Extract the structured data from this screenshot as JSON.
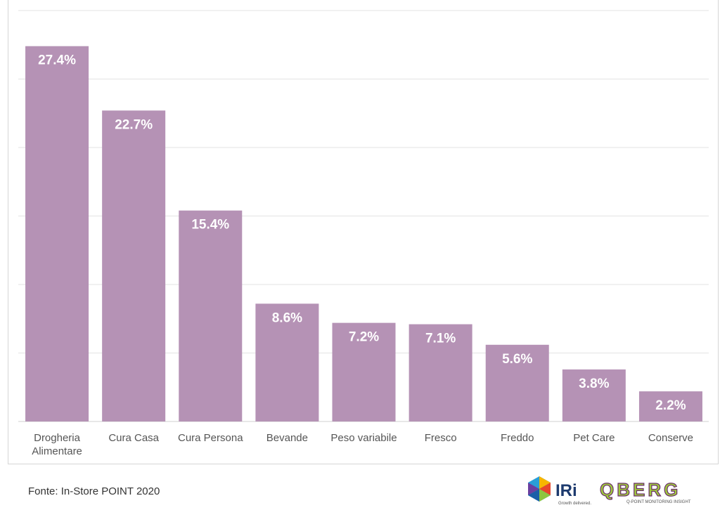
{
  "chart_data": {
    "type": "bar",
    "categories": [
      [
        "Drogheria",
        "Alimentare"
      ],
      [
        "Cura Casa"
      ],
      [
        "Cura Persona"
      ],
      [
        "Bevande"
      ],
      [
        "Peso variabile"
      ],
      [
        "Fresco"
      ],
      [
        "Freddo"
      ],
      [
        "Pet Care"
      ],
      [
        "Conserve"
      ]
    ],
    "values": [
      27.4,
      22.7,
      15.4,
      8.6,
      7.2,
      7.1,
      5.6,
      3.8,
      2.2
    ],
    "value_labels": [
      "27.4%",
      "22.7%",
      "15.4%",
      "8.6%",
      "7.2%",
      "7.1%",
      "5.6%",
      "3.8%",
      "2.2%"
    ],
    "ylim": [
      0,
      30
    ],
    "grid": true,
    "bar_color": "#b592b5"
  },
  "footer": {
    "source": "Fonte: In-Store POINT 2020",
    "logo_iri": "IRi",
    "logo_iri_tagline": "Growth delivered.",
    "logo_qberg": "QBERG",
    "logo_qberg_tagline": "Q-POINT MONITORING INSIGHT"
  }
}
